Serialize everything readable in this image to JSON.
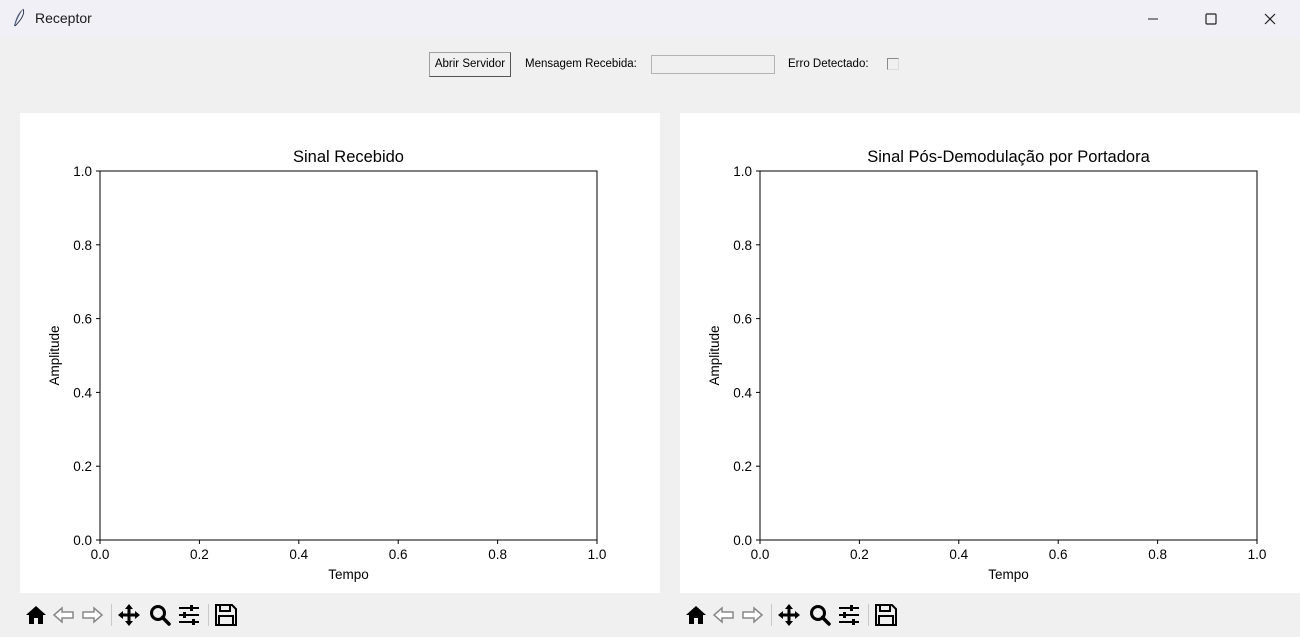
{
  "window": {
    "title": "Receptor",
    "icons": [
      "feather-icon",
      "minimize-icon",
      "maximize-icon",
      "close-icon"
    ]
  },
  "controls": {
    "open_server_label": "Abrir Servidor",
    "message_label": "Mensagem Recebida:",
    "message_value": "",
    "error_label": "Erro Detectado:",
    "error_checked": false
  },
  "toolbar": {
    "icons": [
      "home-icon",
      "back-icon",
      "forward-icon",
      "pan-icon",
      "zoom-icon",
      "configure-subplots-icon",
      "save-icon"
    ]
  },
  "chart_data": [
    {
      "type": "line",
      "title": "Sinal Recebido",
      "xlabel": "Tempo",
      "ylabel": "Amplitude",
      "xlim": [
        0.0,
        1.0
      ],
      "ylim": [
        0.0,
        1.0
      ],
      "xticks": [
        "0.0",
        "0.2",
        "0.4",
        "0.6",
        "0.8",
        "1.0"
      ],
      "yticks": [
        "0.0",
        "0.2",
        "0.4",
        "0.6",
        "0.8",
        "1.0"
      ],
      "series": [],
      "grid": false
    },
    {
      "type": "line",
      "title": "Sinal Pós-Demodulação por Portadora",
      "xlabel": "Tempo",
      "ylabel": "Amplitude",
      "xlim": [
        0.0,
        1.0
      ],
      "ylim": [
        0.0,
        1.0
      ],
      "xticks": [
        "0.0",
        "0.2",
        "0.4",
        "0.6",
        "0.8",
        "1.0"
      ],
      "yticks": [
        "0.0",
        "0.2",
        "0.4",
        "0.6",
        "0.8",
        "1.0"
      ],
      "series": [],
      "grid": false
    }
  ]
}
